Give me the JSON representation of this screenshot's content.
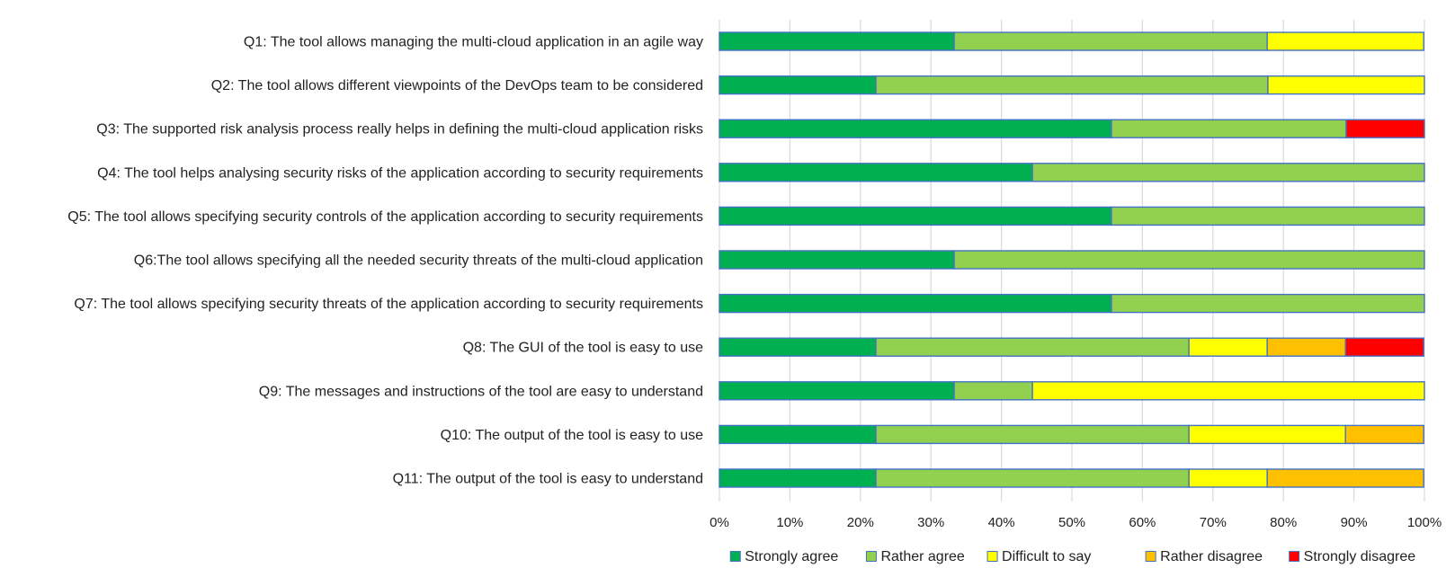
{
  "chart_data": {
    "type": "bar",
    "orientation": "horizontal",
    "stacked": "percent",
    "title": "",
    "xlabel": "",
    "ylabel": "",
    "xlim": [
      0,
      100
    ],
    "x_ticks": [
      "0%",
      "10%",
      "20%",
      "30%",
      "40%",
      "50%",
      "60%",
      "70%",
      "80%",
      "90%",
      "100%"
    ],
    "grid": "vertical",
    "legend_position": "bottom",
    "categories": [
      "Q1: The tool allows managing the multi-cloud application in an agile way",
      "Q2: The tool allows different viewpoints of the DevOps team to be considered",
      "Q3: The supported risk analysis process really helps in defining the multi-cloud application risks",
      "Q4: The tool helps analysing security risks of the application according to security requirements",
      "Q5: The tool allows specifying security controls of the application according to security requirements",
      "Q6:The tool allows specifying all the needed security threats of the multi-cloud application",
      "Q7: The tool allows specifying security threats of the application according to security requirements",
      "Q8: The GUI of the tool is easy to use",
      "Q9: The messages and instructions of the tool are easy to understand",
      "Q10: The output of the tool is easy to use",
      "Q11: The output of the tool is easy to understand"
    ],
    "series": [
      {
        "name": "Strongly agree",
        "color": "#00b050",
        "values": [
          33.3,
          22.2,
          55.6,
          44.4,
          55.6,
          33.3,
          55.6,
          22.2,
          33.3,
          22.2,
          22.2
        ]
      },
      {
        "name": "Rather agree",
        "color": "#92d050",
        "values": [
          44.4,
          55.6,
          33.3,
          55.6,
          44.4,
          66.7,
          44.4,
          44.4,
          11.1,
          44.4,
          44.4
        ]
      },
      {
        "name": "Difficult  to say",
        "color": "#ffff00",
        "values": [
          22.2,
          22.2,
          0,
          0,
          0,
          0,
          0,
          11.1,
          55.6,
          22.2,
          11.1
        ]
      },
      {
        "name": "Rather disagree",
        "color": "#ffc000",
        "values": [
          0,
          0,
          0,
          0,
          0,
          0,
          0,
          11.1,
          0,
          11.1,
          22.2
        ]
      },
      {
        "name": "Strongly disagree",
        "color": "#ff0000",
        "values": [
          0,
          0,
          11.1,
          0,
          0,
          0,
          0,
          11.1,
          0,
          0,
          0
        ]
      }
    ],
    "bar_border_color": "#4472c4",
    "grid_color": "#d9d9d9"
  }
}
